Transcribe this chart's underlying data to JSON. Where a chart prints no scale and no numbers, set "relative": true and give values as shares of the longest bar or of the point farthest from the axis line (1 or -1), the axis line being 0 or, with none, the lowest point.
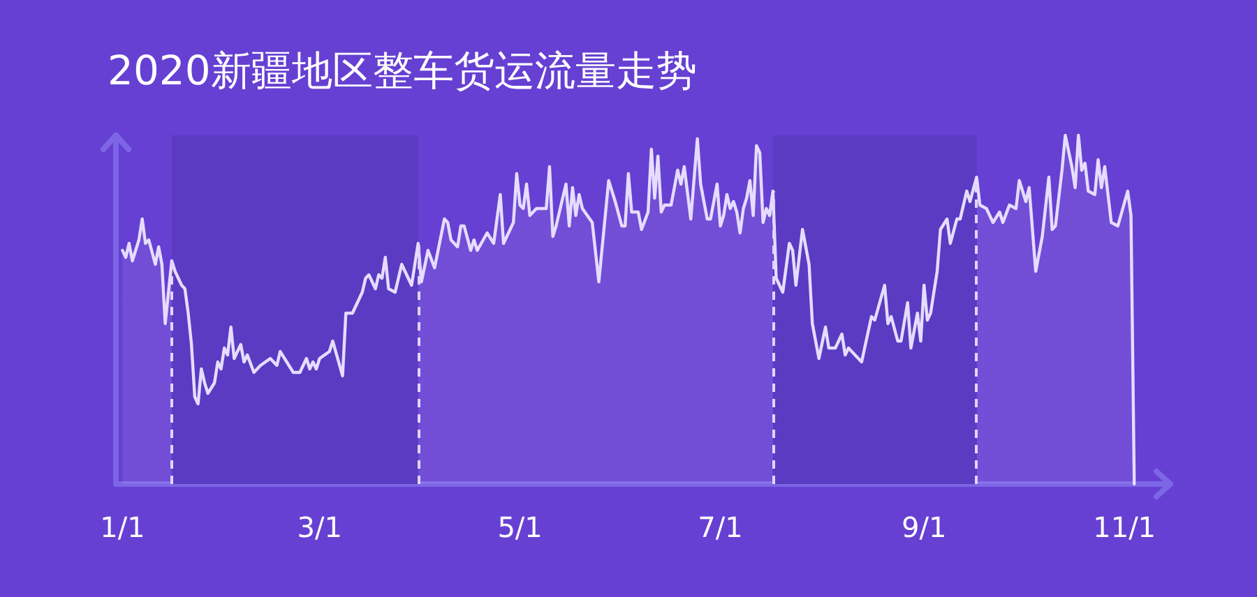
{
  "chart_data": {
    "type": "area",
    "title": "2020新疆地区整车货运流量走势",
    "relative": true,
    "color": "#e6dcff",
    "marker": "none",
    "x": [
      "2020-01-01",
      "2020-01-02",
      "2020-01-03",
      "2020-01-04",
      "2020-01-05",
      "2020-01-06",
      "2020-01-07",
      "2020-01-08",
      "2020-01-09",
      "2020-01-11",
      "2020-01-12",
      "2020-01-13",
      "2020-01-14",
      "2020-01-15",
      "2020-01-16",
      "2020-01-17",
      "2020-01-19",
      "2020-01-20",
      "2020-01-21",
      "2020-01-22",
      "2020-01-23",
      "2020-01-24",
      "2020-01-25",
      "2020-01-26",
      "2020-01-27",
      "2020-01-29",
      "2020-01-30",
      "2020-01-31",
      "2020-02-01",
      "2020-02-02",
      "2020-02-03",
      "2020-02-04",
      "2020-02-06",
      "2020-02-07",
      "2020-02-08",
      "2020-02-10",
      "2020-02-12",
      "2020-02-15",
      "2020-02-17",
      "2020-02-18",
      "2020-02-20",
      "2020-02-22",
      "2020-02-24",
      "2020-02-26",
      "2020-02-27",
      "2020-02-28",
      "2020-02-29",
      "2020-03-01",
      "2020-03-04",
      "2020-03-05",
      "2020-03-08",
      "2020-03-09",
      "2020-03-11",
      "2020-03-13",
      "2020-03-14",
      "2020-03-15",
      "2020-03-16",
      "2020-03-18",
      "2020-03-19",
      "2020-03-20",
      "2020-03-21",
      "2020-03-22",
      "2020-03-24",
      "2020-03-26",
      "2020-03-27",
      "2020-03-29",
      "2020-03-31",
      "2020-04-01",
      "2020-04-03",
      "2020-04-05",
      "2020-04-08",
      "2020-04-09",
      "2020-04-10",
      "2020-04-12",
      "2020-04-13",
      "2020-04-14",
      "2020-04-16",
      "2020-04-17",
      "2020-04-18",
      "2020-04-21",
      "2020-04-23",
      "2020-04-25",
      "2020-04-26",
      "2020-04-29",
      "2020-04-30",
      "2020-05-01",
      "2020-05-02",
      "2020-05-03",
      "2020-05-04",
      "2020-05-06",
      "2020-05-09",
      "2020-05-10",
      "2020-05-11",
      "2020-05-12",
      "2020-05-15",
      "2020-05-16",
      "2020-05-17",
      "2020-05-18",
      "2020-05-19",
      "2020-05-20",
      "2020-05-23",
      "2020-05-25",
      "2020-05-28",
      "2020-05-30",
      "2020-06-01",
      "2020-06-02",
      "2020-06-03",
      "2020-06-04",
      "2020-06-06",
      "2020-06-07",
      "2020-06-09",
      "2020-06-10",
      "2020-06-11",
      "2020-06-12",
      "2020-06-13",
      "2020-06-14",
      "2020-06-16",
      "2020-06-18",
      "2020-06-19",
      "2020-06-20",
      "2020-06-22",
      "2020-06-24",
      "2020-06-25",
      "2020-06-27",
      "2020-06-28",
      "2020-06-30",
      "2020-07-01",
      "2020-07-02",
      "2020-07-03",
      "2020-07-04",
      "2020-07-05",
      "2020-07-06",
      "2020-07-07",
      "2020-07-08",
      "2020-07-09",
      "2020-07-10",
      "2020-07-11",
      "2020-07-12",
      "2020-07-13",
      "2020-07-14",
      "2020-07-15",
      "2020-07-16",
      "2020-07-17",
      "2020-07-18",
      "2020-07-20",
      "2020-07-22",
      "2020-07-23",
      "2020-07-24",
      "2020-07-26",
      "2020-07-28",
      "2020-07-29",
      "2020-07-31",
      "2020-08-02",
      "2020-08-03",
      "2020-08-05",
      "2020-08-07",
      "2020-08-08",
      "2020-08-09",
      "2020-08-11",
      "2020-08-13",
      "2020-08-16",
      "2020-08-17",
      "2020-08-20",
      "2020-08-21",
      "2020-08-22",
      "2020-08-24",
      "2020-08-25",
      "2020-08-27",
      "2020-08-28",
      "2020-08-30",
      "2020-08-31",
      "2020-09-01",
      "2020-09-02",
      "2020-09-03",
      "2020-09-05",
      "2020-09-06",
      "2020-09-08",
      "2020-09-09",
      "2020-09-11",
      "2020-09-12",
      "2020-09-14",
      "2020-09-15",
      "2020-09-17",
      "2020-09-18",
      "2020-09-20",
      "2020-09-21",
      "2020-09-22",
      "2020-09-24",
      "2020-09-25",
      "2020-09-27",
      "2020-09-29",
      "2020-09-30",
      "2020-10-02",
      "2020-10-03",
      "2020-10-05",
      "2020-10-07",
      "2020-10-09",
      "2020-10-10",
      "2020-10-11",
      "2020-10-13",
      "2020-10-14",
      "2020-10-16",
      "2020-10-17",
      "2020-10-18",
      "2020-10-19",
      "2020-10-20",
      "2020-10-21",
      "2020-10-23",
      "2020-10-24",
      "2020-10-25",
      "2020-10-26",
      "2020-10-28",
      "2020-10-30",
      "2020-11-02",
      "2020-11-03",
      "2020-11-04"
    ],
    "values": [
      0.67,
      0.65,
      0.69,
      0.64,
      0.67,
      0.7,
      0.76,
      0.69,
      0.7,
      0.63,
      0.68,
      0.63,
      0.46,
      0.55,
      0.64,
      0.61,
      0.57,
      0.56,
      0.49,
      0.4,
      0.25,
      0.23,
      0.33,
      0.29,
      0.26,
      0.29,
      0.35,
      0.33,
      0.39,
      0.37,
      0.45,
      0.36,
      0.4,
      0.35,
      0.37,
      0.32,
      0.34,
      0.36,
      0.34,
      0.38,
      0.35,
      0.32,
      0.32,
      0.36,
      0.33,
      0.35,
      0.33,
      0.36,
      0.38,
      0.41,
      0.31,
      0.49,
      0.49,
      0.53,
      0.55,
      0.59,
      0.6,
      0.56,
      0.6,
      0.59,
      0.65,
      0.56,
      0.55,
      0.63,
      0.61,
      0.57,
      0.69,
      0.58,
      0.67,
      0.62,
      0.76,
      0.75,
      0.7,
      0.68,
      0.74,
      0.74,
      0.67,
      0.7,
      0.67,
      0.72,
      0.69,
      0.83,
      0.69,
      0.75,
      0.89,
      0.8,
      0.79,
      0.86,
      0.77,
      0.79,
      0.79,
      0.91,
      0.71,
      0.74,
      0.86,
      0.74,
      0.85,
      0.77,
      0.83,
      0.79,
      0.75,
      0.58,
      0.87,
      0.81,
      0.74,
      0.74,
      0.89,
      0.78,
      0.78,
      0.73,
      0.78,
      0.96,
      0.82,
      0.94,
      0.78,
      0.8,
      0.8,
      0.9,
      0.86,
      0.91,
      0.76,
      0.99,
      0.86,
      0.76,
      0.76,
      0.86,
      0.74,
      0.77,
      0.83,
      0.79,
      0.81,
      0.78,
      0.72,
      0.79,
      0.82,
      0.87,
      0.77,
      0.97,
      0.95,
      0.75,
      0.79,
      0.77,
      0.84,
      0.59,
      0.55,
      0.69,
      0.67,
      0.57,
      0.73,
      0.63,
      0.46,
      0.36,
      0.45,
      0.39,
      0.39,
      0.43,
      0.37,
      0.39,
      0.37,
      0.35,
      0.48,
      0.47,
      0.57,
      0.46,
      0.48,
      0.41,
      0.41,
      0.52,
      0.39,
      0.49,
      0.41,
      0.57,
      0.47,
      0.49,
      0.61,
      0.73,
      0.76,
      0.69,
      0.76,
      0.76,
      0.84,
      0.81,
      0.88,
      0.8,
      0.79,
      0.77,
      0.75,
      0.78,
      0.75,
      0.8,
      0.79,
      0.87,
      0.81,
      0.85,
      0.61,
      0.71,
      0.88,
      0.73,
      0.74,
      0.9,
      1,
      0.91,
      0.85,
      1,
      0.9,
      0.92,
      0.84,
      0.83,
      0.93,
      0.85,
      0.91,
      0.75,
      0.74,
      0.84,
      0.77,
      0
    ],
    "xlim": [
      "2019-12-30",
      "2020-11-15"
    ],
    "xticks": [
      {
        "value": "2020-01-01",
        "label": "1/1"
      },
      {
        "value": "2020-03-01",
        "label": "3/1"
      },
      {
        "value": "2020-05-01",
        "label": "5/1"
      },
      {
        "value": "2020-07-01",
        "label": "7/1"
      },
      {
        "value": "2020-09-01",
        "label": "9/1"
      },
      {
        "value": "2020-11-01",
        "label": "11/1"
      }
    ],
    "ref_lines": [
      {
        "axis": "x",
        "value": "2020-01-16",
        "color": "#e0d6ff",
        "line_style": "dashed"
      },
      {
        "axis": "x",
        "value": "2020-03-31",
        "color": "#e0d6ff",
        "line_style": "dashed"
      },
      {
        "axis": "x",
        "value": "2020-07-17",
        "color": "#e0d6ff",
        "line_style": "dashed"
      },
      {
        "axis": "x",
        "value": "2020-09-17",
        "color": "#e0d6ff",
        "line_style": "dashed"
      }
    ],
    "bands": [
      {
        "axis": "x",
        "from": "2020-01-16",
        "to": "2020-03-31",
        "color": "#5a3bc2"
      },
      {
        "axis": "x",
        "from": "2020-07-17",
        "to": "2020-09-17",
        "color": "#5a3bc2"
      }
    ]
  }
}
